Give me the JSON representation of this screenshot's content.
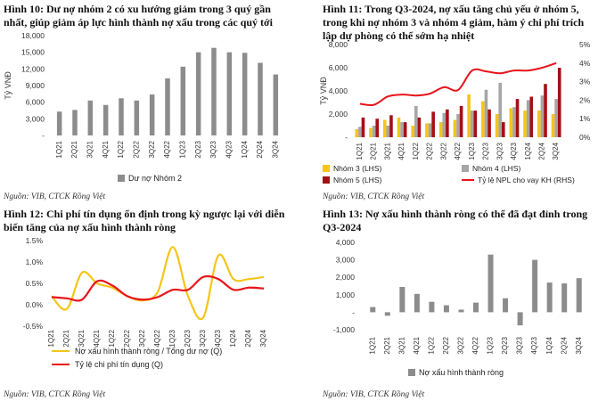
{
  "panels": [
    {
      "title": "Hình 10: Dư nợ nhóm 2 có xu hướng giảm trong 3 quý gần nhất, giúp giảm áp lực hình thành nợ xấu trong các quý tới",
      "source": "Nguồn: VIB, CTCK Rồng Việt"
    },
    {
      "title": "Hình 11: Trong Q3-2024, nợ xấu tăng chủ yếu ở nhóm 5, trong khi nợ nhóm 3 và nhóm 4 giảm, hàm ý chi phí trích lập dự phòng có thể sớm hạ nhiệt",
      "source": "Nguồn: VIB, CTCK Rồng Việt"
    },
    {
      "title": "Hình 12: Chi phí tín dụng ổn định trong kỳ ngược lại với diễn biến tăng của nợ xấu hình thành ròng",
      "source": "Nguồn: VIB, CTCK Rồng Việt"
    },
    {
      "title": "Hình 13: Nợ xấu hình thành ròng có thể đã đạt đỉnh trong Q3-2024",
      "source": "Nguồn: VIB, CTCK Rồng Việt"
    }
  ],
  "colors": {
    "gray_bar": "#8c8c8c",
    "yellow": "#f5c518",
    "light_gray": "#a6a6a6",
    "dark_red": "#a50f15",
    "red": "#e8141b"
  },
  "chart_data": [
    {
      "type": "bar",
      "categories": [
        "1Q21",
        "2Q21",
        "3Q21",
        "4Q21",
        "1Q22",
        "2Q22",
        "3Q22",
        "4Q22",
        "1Q23",
        "2Q23",
        "3Q23",
        "4Q23",
        "1Q24",
        "2Q24",
        "3Q24"
      ],
      "series": [
        {
          "name": "Dư nợ Nhóm 2",
          "values": [
            4300,
            4600,
            6300,
            5500,
            6700,
            6300,
            7400,
            10300,
            12400,
            15000,
            15800,
            15000,
            14900,
            13100,
            11000
          ]
        }
      ],
      "ylabel": "Tỷ VNĐ",
      "ylim": [
        0,
        18000
      ],
      "yticks": [
        0,
        3000,
        6000,
        9000,
        12000,
        15000,
        18000
      ],
      "ytick_labels": [
        "-",
        "3,000",
        "6,000",
        "9,000",
        "12,000",
        "15,000",
        "18,000"
      ],
      "legend": "bottom"
    },
    {
      "type": "bar",
      "categories": [
        "1Q21",
        "2Q21",
        "3Q21",
        "4Q21",
        "1Q22",
        "2Q22",
        "3Q22",
        "4Q22",
        "1Q23",
        "2Q23",
        "3Q23",
        "4Q23",
        "1Q24",
        "2Q24",
        "3Q24"
      ],
      "series": [
        {
          "name": "Nhóm 3 (LHS)",
          "values": [
            700,
            800,
            1500,
            1700,
            1000,
            1200,
            1300,
            1500,
            3700,
            3100,
            2000,
            2500,
            2300,
            2300,
            2000
          ]
        },
        {
          "name": "Nhóm 4 (LHS)",
          "values": [
            900,
            1000,
            1000,
            1300,
            2700,
            1200,
            2100,
            2000,
            2300,
            4100,
            4700,
            2600,
            3200,
            3600,
            3300
          ]
        },
        {
          "name": "Nhóm 5 (LHS)",
          "values": [
            1700,
            1600,
            1900,
            1300,
            1700,
            2200,
            2400,
            2700,
            2300,
            2400,
            1300,
            3300,
            3500,
            4600,
            6000
          ]
        },
        {
          "name": "Tỷ lệ NPL cho vay KH (RHS)",
          "axis": "right",
          "values": [
            1.8,
            1.75,
            2.2,
            2.3,
            2.25,
            2.35,
            2.7,
            2.55,
            3.6,
            3.55,
            3.45,
            3.6,
            3.6,
            3.75,
            4.0
          ]
        }
      ],
      "ylabel": "Tỷ VNĐ",
      "ylim": [
        0,
        8000
      ],
      "yticks": [
        0,
        2000,
        4000,
        6000,
        8000
      ],
      "ytick_labels": [
        "-",
        "2,000",
        "4,000",
        "6,000",
        "8,000"
      ],
      "y2lim": [
        0,
        5
      ],
      "y2ticks": [
        0,
        1,
        2,
        3,
        4,
        5
      ],
      "y2tick_labels": [
        "0%",
        "1%",
        "2%",
        "3%",
        "4%",
        "5%"
      ],
      "legend": "bottom"
    },
    {
      "type": "line",
      "categories": [
        "1Q21",
        "2Q21",
        "3Q21",
        "4Q21",
        "1Q22",
        "2Q22",
        "3Q22",
        "4Q22",
        "1Q23",
        "2Q23",
        "3Q23",
        "4Q23",
        "1Q24",
        "2Q24",
        "3Q24"
      ],
      "series": [
        {
          "name": "Nợ xấu hình thành ròng / Tổng dư nợ (Q)",
          "values": [
            0.2,
            -0.1,
            0.75,
            0.5,
            0.4,
            0.2,
            0.1,
            0.3,
            1.35,
            0.2,
            -0.3,
            1.15,
            0.6,
            0.6,
            0.65
          ]
        },
        {
          "name": "Tỷ lệ chi phí tín dụng (Q)",
          "values": [
            0.18,
            0.15,
            0.12,
            0.55,
            0.45,
            0.2,
            0.12,
            0.18,
            0.35,
            0.35,
            0.65,
            0.6,
            0.35,
            0.4,
            0.38
          ]
        }
      ],
      "ylim": [
        -0.5,
        1.5
      ],
      "yticks": [
        -0.5,
        0,
        0.5,
        1,
        1.5
      ],
      "ytick_labels": [
        "-0.5%",
        "0.0%",
        "0.5%",
        "1.0%",
        "1.5%"
      ],
      "legend": "bottom"
    },
    {
      "type": "bar",
      "categories": [
        "1Q21",
        "2Q21",
        "3Q21",
        "4Q21",
        "1Q22",
        "2Q22",
        "3Q22",
        "4Q22",
        "1Q23",
        "2Q23",
        "3Q23",
        "4Q23",
        "1Q24",
        "2Q24",
        "3Q24"
      ],
      "series": [
        {
          "name": "Nợ xấu hình thành ròng",
          "values": [
            300,
            -200,
            1450,
            1050,
            600,
            400,
            150,
            550,
            3300,
            800,
            -750,
            3000,
            1700,
            1650,
            1950
          ]
        }
      ],
      "ylim": [
        -1000,
        4000
      ],
      "yticks": [
        -1000,
        0,
        1000,
        2000,
        3000,
        4000
      ],
      "ytick_labels": [
        "-1,000",
        "-",
        "1,000",
        "2,000",
        "3,000",
        "4,000"
      ],
      "legend": "bottom"
    }
  ]
}
